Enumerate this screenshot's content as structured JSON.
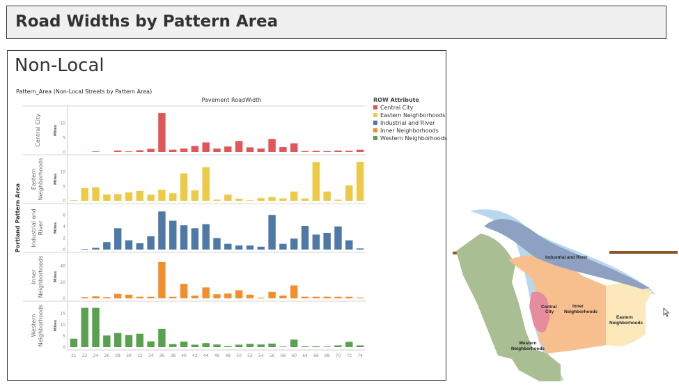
{
  "header": {
    "title": "Road Widths by Pattern Area"
  },
  "panel": {
    "title": "Non-Local"
  },
  "chart_title": "Pattern_Area  (Non-Local Streets by Pattern Area)",
  "colors": {
    "Central City": "#e15759",
    "Eastern Neighborhoods": "#edc948",
    "Industrial and River": "#4e79a7",
    "Inner Neighborhoods": "#f28e2b",
    "Western Neighborhoods": "#59a14f"
  },
  "chart_data": {
    "type": "bar",
    "title": "Pattern_Area  (Non-Local Streets by Pattern Area)",
    "xlabel": "Pavement RoadWidth",
    "ylabel": "Portland Pattern Area",
    "legend_title": "ROW Attribute",
    "legend_position": "right",
    "categories": [
      "21",
      "22",
      "24",
      "26",
      "28",
      "30",
      "32",
      "34",
      "36",
      "38",
      "40",
      "42",
      "44",
      "46",
      "48",
      "50",
      "52",
      "54",
      "56",
      "58",
      "60",
      "64",
      "66",
      "68",
      "70",
      "72",
      "74"
    ],
    "x_tick_labels": [
      "21",
      "22",
      "24",
      "26",
      "28",
      "30",
      "32",
      "34",
      "36",
      "38",
      "40",
      "42",
      "44",
      "46",
      "48",
      "50",
      "52",
      "54",
      "56",
      "58",
      "60",
      "64",
      "66",
      "68",
      "70",
      "72",
      "74"
    ],
    "panels": [
      {
        "name": "Central City",
        "ylabel": "Miles",
        "ylim": [
          0,
          14
        ],
        "ticks": [
          0,
          5,
          10
        ],
        "values": [
          0,
          0,
          0.1,
          0,
          0.5,
          0.2,
          0.6,
          1.1,
          13.5,
          0.8,
          1.2,
          2.1,
          3.3,
          1.2,
          1.9,
          3.8,
          1.6,
          1.2,
          4.5,
          1.7,
          3.0,
          0.3,
          0.4,
          0.3,
          0.5,
          0.4,
          0.8
        ]
      },
      {
        "name": "Eastern Neighborhoods",
        "ylabel": "Miles",
        "ylim": [
          0,
          14
        ],
        "ticks": [
          0,
          5,
          10
        ],
        "values": [
          0.2,
          4.4,
          4.7,
          2.2,
          2.3,
          2.9,
          3.4,
          2.1,
          3.8,
          2.6,
          9.5,
          3.6,
          11.6,
          0.4,
          2.1,
          0.7,
          0.1,
          0.9,
          1.3,
          0.8,
          3.2,
          0.8,
          13.4,
          3.2,
          0.4,
          5.3,
          13.5
        ]
      },
      {
        "name": "Industrial and River",
        "ylabel": "Miles",
        "ylim": [
          0,
          7
        ],
        "ticks": [
          0,
          2,
          4,
          6
        ],
        "values": [
          0,
          0.1,
          0.3,
          1.3,
          3.7,
          1.6,
          1.1,
          2.3,
          6.6,
          5.0,
          4.2,
          3.7,
          4.4,
          2.0,
          1.0,
          0.7,
          0.7,
          0.5,
          6.0,
          1.0,
          1.9,
          4.1,
          2.6,
          2.9,
          4.0,
          1.6,
          0.2
        ]
      },
      {
        "name": "Inner Neighborhoods",
        "ylabel": "Miles",
        "ylim": [
          0,
          50
        ],
        "ticks": [
          0,
          20,
          40
        ],
        "values": [
          0,
          1.5,
          2.5,
          1.5,
          5.5,
          4.5,
          2,
          2,
          45,
          2,
          18,
          3.5,
          13.5,
          5,
          6,
          10,
          4.5,
          1,
          8,
          3.5,
          16,
          2,
          2,
          2,
          2,
          2,
          1
        ]
      },
      {
        "name": "Western Neighborhoods",
        "ylabel": "Miles",
        "ylim": [
          0,
          18
        ],
        "ticks": [
          0,
          5,
          10,
          15
        ],
        "values": [
          3.8,
          17.5,
          17.5,
          5.2,
          6.3,
          5.4,
          6.0,
          2.6,
          8.1,
          1.4,
          2.5,
          1.1,
          1.8,
          1.2,
          0.5,
          1.1,
          1.5,
          1.2,
          1.6,
          0.3,
          3.4,
          0.4,
          0.4,
          0.3,
          0.8,
          2.4,
          0.8
        ]
      }
    ]
  },
  "map": {
    "labels": {
      "industrial": "Industrial and River",
      "central_1": "Central",
      "central_2": "City",
      "inner_1": "Inner",
      "inner_2": "Neighborhoods",
      "eastern_1": "Eastern",
      "eastern_2": "Neighborhoods",
      "western_1": "Western",
      "western_2": "Neighborhoods"
    }
  }
}
